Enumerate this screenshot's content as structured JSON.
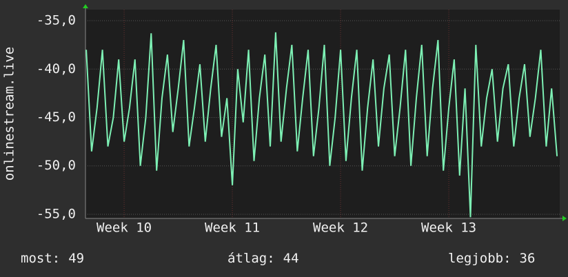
{
  "chart_data": {
    "type": "line",
    "y_label": "onlinestream.live",
    "x": [
      9.65,
      9.7,
      9.75,
      9.8,
      9.85,
      9.9,
      9.95,
      10.0,
      10.05,
      10.1,
      10.15,
      10.2,
      10.25,
      10.3,
      10.35,
      10.4,
      10.45,
      10.5,
      10.55,
      10.6,
      10.65,
      10.7,
      10.75,
      10.8,
      10.85,
      10.9,
      10.95,
      11.0,
      11.05,
      11.1,
      11.15,
      11.2,
      11.25,
      11.3,
      11.35,
      11.4,
      11.45,
      11.5,
      11.55,
      11.6,
      11.65,
      11.7,
      11.75,
      11.8,
      11.85,
      11.9,
      11.95,
      12.0,
      12.05,
      12.1,
      12.15,
      12.2,
      12.25,
      12.3,
      12.35,
      12.4,
      12.45,
      12.5,
      12.55,
      12.6,
      12.65,
      12.7,
      12.75,
      12.8,
      12.85,
      12.9,
      12.95,
      13.0,
      13.05,
      13.1,
      13.15,
      13.2,
      13.25,
      13.3,
      13.35,
      13.4,
      13.45,
      13.5,
      13.55,
      13.6,
      13.65,
      13.7,
      13.75,
      13.8,
      13.85,
      13.9,
      13.95,
      14.0
    ],
    "series": [
      {
        "color": "#7df0b4",
        "values": [
          -38,
          -48.5,
          -44,
          -38,
          -48,
          -45,
          -39,
          -47.5,
          -44,
          -39,
          -50,
          -45,
          -36.3,
          -50.5,
          -43,
          -38.5,
          -46.5,
          -42,
          -37,
          -48,
          -44,
          -39.5,
          -47.5,
          -42,
          -37.5,
          -47,
          -43,
          -52,
          -40,
          -45.5,
          -38,
          -49.5,
          -43,
          -38.5,
          -48,
          -36.2,
          -47.5,
          -42,
          -37.5,
          -48.5,
          -43,
          -38,
          -49,
          -44,
          -37.5,
          -50,
          -45,
          -38,
          -49.5,
          -43,
          -38,
          -50.5,
          -44,
          -39,
          -48,
          -42,
          -38.5,
          -49,
          -44,
          -38,
          -50,
          -43,
          -37.5,
          -49,
          -42,
          -37,
          -50.5,
          -44,
          -39,
          -51,
          -42,
          -55.3,
          -37.5,
          -48,
          -43,
          -40,
          -47.5,
          -42,
          -39.5,
          -48,
          -43,
          -39.5,
          -47,
          -43,
          -38,
          -48,
          -42,
          -49
        ]
      }
    ],
    "xlim": [
      9.643,
      14.025
    ],
    "xticks": [
      {
        "value": 10,
        "label": "Week 10"
      },
      {
        "value": 11,
        "label": "Week 11"
      },
      {
        "value": 12,
        "label": "Week 12"
      },
      {
        "value": 13,
        "label": "Week 13"
      }
    ],
    "ylim": [
      -55.43,
      -33.86
    ],
    "yticks": [
      {
        "value": -55,
        "label": "-55,0"
      },
      {
        "value": -50,
        "label": "-50,0"
      },
      {
        "value": -45,
        "label": "-45,0"
      },
      {
        "value": -40,
        "label": "-40,0"
      },
      {
        "value": -35,
        "label": "-35,0"
      }
    ],
    "grid": true,
    "stats": [
      {
        "label": "most:",
        "value": 49
      },
      {
        "label": "átlag:",
        "value": 44
      },
      {
        "label": "legjobb:",
        "value": 36
      }
    ]
  }
}
